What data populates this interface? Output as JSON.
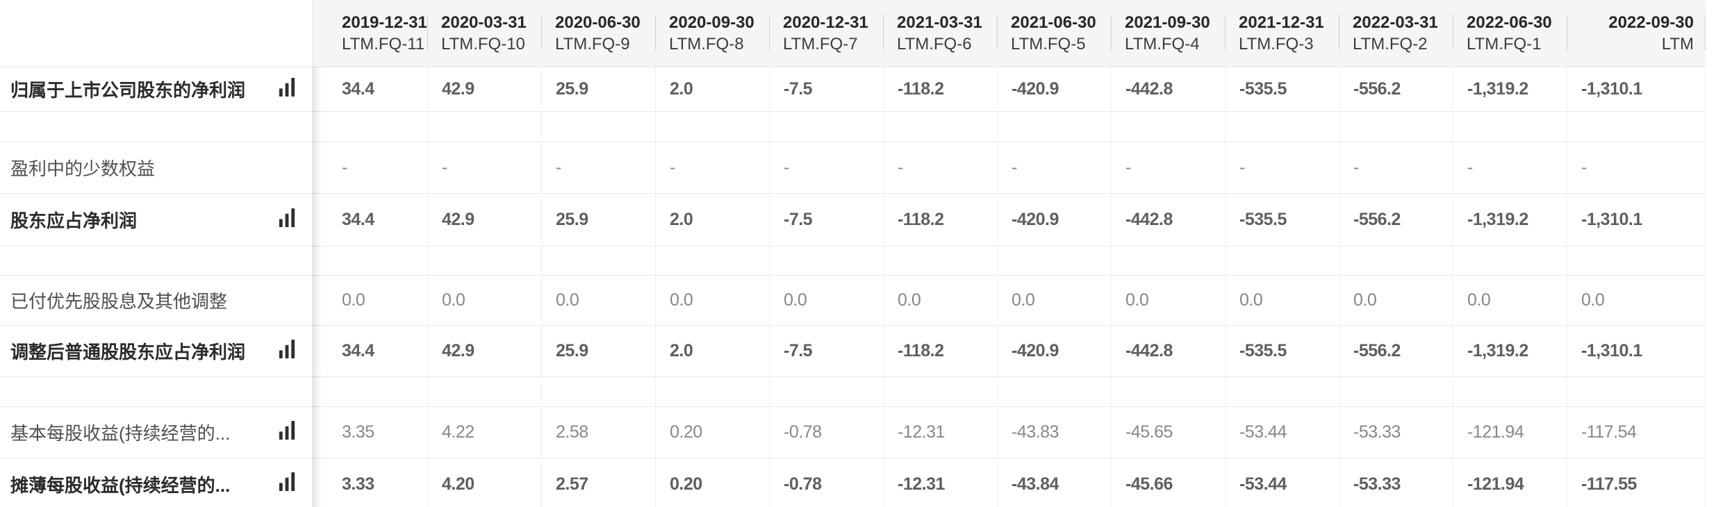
{
  "colors": {
    "header_bg": "#f5f5f5",
    "row_border": "#e9e9e9",
    "label_bold_text": "#2b2b2b",
    "label_normal_text": "#4f4f4f",
    "value_bold_text": "#5f5f5f",
    "value_normal_text": "#878787",
    "icon_color": "#2f2f2f"
  },
  "icons": {
    "chart_icon": "bar-chart-icon"
  },
  "table": {
    "columns": [
      {
        "date": "2019-12-31",
        "period": "LTM.FQ-11"
      },
      {
        "date": "2020-03-31",
        "period": "LTM.FQ-10"
      },
      {
        "date": "2020-06-30",
        "period": "LTM.FQ-9"
      },
      {
        "date": "2020-09-30",
        "period": "LTM.FQ-8"
      },
      {
        "date": "2020-12-31",
        "period": "LTM.FQ-7"
      },
      {
        "date": "2021-03-31",
        "period": "LTM.FQ-6"
      },
      {
        "date": "2021-06-30",
        "period": "LTM.FQ-5"
      },
      {
        "date": "2021-09-30",
        "period": "LTM.FQ-4"
      },
      {
        "date": "2021-12-31",
        "period": "LTM.FQ-3"
      },
      {
        "date": "2022-03-31",
        "period": "LTM.FQ-2"
      },
      {
        "date": "2022-06-30",
        "period": "LTM.FQ-1"
      },
      {
        "date": "2022-09-30",
        "period": "LTM"
      }
    ],
    "rows": [
      {
        "type": "data",
        "label": "归属于上市公司股东的净利润",
        "bold": true,
        "chart_icon": true,
        "values": [
          "34.4",
          "42.9",
          "25.9",
          "2.0",
          "-7.5",
          "-118.2",
          "-420.9",
          "-442.8",
          "-535.5",
          "-556.2",
          "-1,319.2",
          "-1,310.1"
        ]
      },
      {
        "type": "spacer",
        "label": "",
        "bold": false,
        "chart_icon": false,
        "values": [
          "",
          "",
          "",
          "",
          "",
          "",
          "",
          "",
          "",
          "",
          "",
          ""
        ]
      },
      {
        "type": "data",
        "label": "盈利中的少数权益",
        "bold": false,
        "chart_icon": false,
        "values": [
          "-",
          "-",
          "-",
          "-",
          "-",
          "-",
          "-",
          "-",
          "-",
          "-",
          "-",
          "-"
        ]
      },
      {
        "type": "data",
        "label": "股东应占净利润",
        "bold": true,
        "chart_icon": true,
        "values": [
          "34.4",
          "42.9",
          "25.9",
          "2.0",
          "-7.5",
          "-118.2",
          "-420.9",
          "-442.8",
          "-535.5",
          "-556.2",
          "-1,319.2",
          "-1,310.1"
        ]
      },
      {
        "type": "spacer",
        "label": "",
        "bold": false,
        "chart_icon": false,
        "values": [
          "",
          "",
          "",
          "",
          "",
          "",
          "",
          "",
          "",
          "",
          "",
          ""
        ]
      },
      {
        "type": "data",
        "label": "已付优先股股息及其他调整",
        "bold": false,
        "chart_icon": false,
        "values": [
          "0.0",
          "0.0",
          "0.0",
          "0.0",
          "0.0",
          "0.0",
          "0.0",
          "0.0",
          "0.0",
          "0.0",
          "0.0",
          "0.0"
        ]
      },
      {
        "type": "data",
        "label": "调整后普通股股东应占净利润",
        "bold": true,
        "chart_icon": true,
        "values": [
          "34.4",
          "42.9",
          "25.9",
          "2.0",
          "-7.5",
          "-118.2",
          "-420.9",
          "-442.8",
          "-535.5",
          "-556.2",
          "-1,319.2",
          "-1,310.1"
        ]
      },
      {
        "type": "spacer",
        "label": "",
        "bold": false,
        "chart_icon": false,
        "values": [
          "",
          "",
          "",
          "",
          "",
          "",
          "",
          "",
          "",
          "",
          "",
          ""
        ]
      },
      {
        "type": "data",
        "label": "基本每股收益(持续经营的...",
        "bold": false,
        "chart_icon": true,
        "values": [
          "3.35",
          "4.22",
          "2.58",
          "0.20",
          "-0.78",
          "-12.31",
          "-43.83",
          "-45.65",
          "-53.44",
          "-53.33",
          "-121.94",
          "-117.54"
        ]
      },
      {
        "type": "data",
        "label": "摊薄每股收益(持续经营的...",
        "bold": true,
        "chart_icon": true,
        "values": [
          "3.33",
          "4.20",
          "2.57",
          "0.20",
          "-0.78",
          "-12.31",
          "-43.84",
          "-45.66",
          "-53.44",
          "-53.33",
          "-121.94",
          "-117.55"
        ]
      }
    ]
  }
}
